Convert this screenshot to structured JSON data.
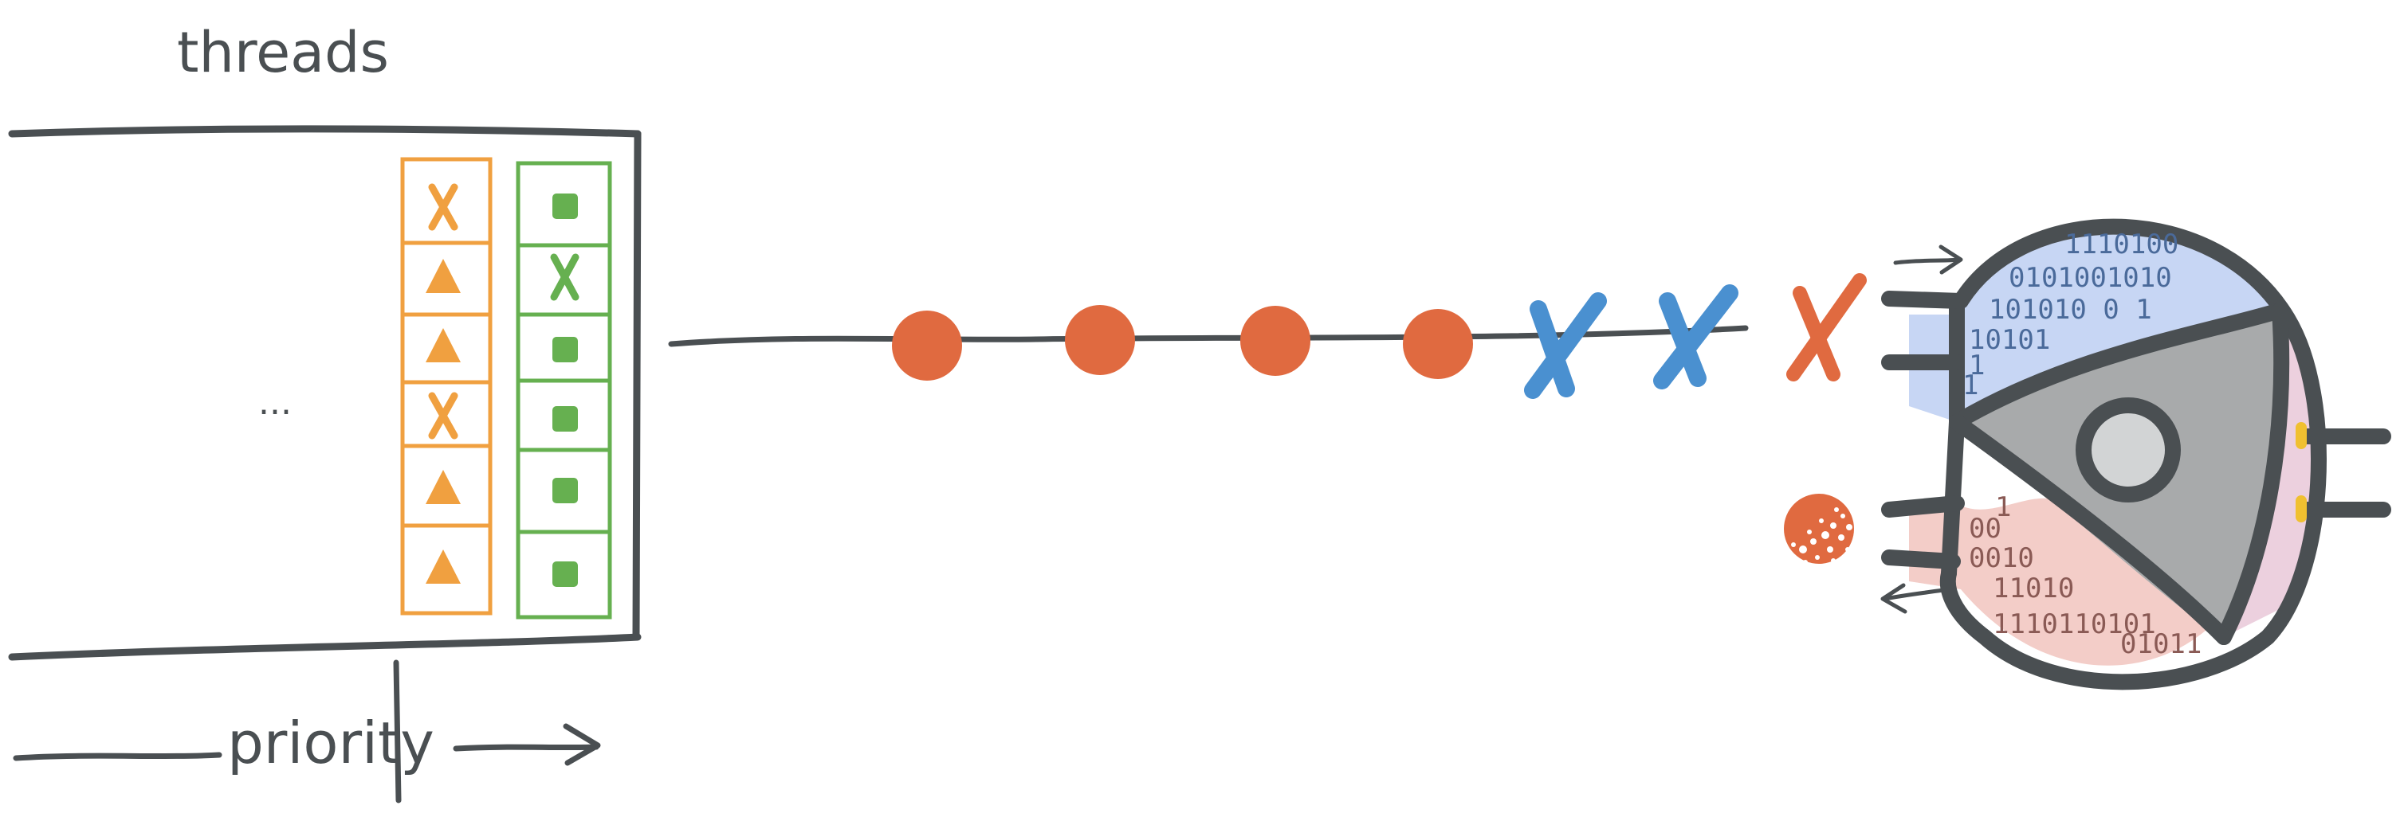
{
  "labels": {
    "threads": "threads",
    "ellipsis": "...",
    "priority": "priority"
  },
  "queues": [
    {
      "name": "orange-queue",
      "color": "#f0a040",
      "items": [
        "x",
        "triangle",
        "triangle",
        "x",
        "triangle",
        "triangle"
      ]
    },
    {
      "name": "green-queue",
      "color": "#66b050",
      "items": [
        "square",
        "x",
        "square",
        "square",
        "square",
        "square"
      ]
    }
  ],
  "pipeline": {
    "dots": 4,
    "blue_marks": 2,
    "red_marks": 1
  },
  "machine": {
    "top_binary": [
      "1110100",
      "0101001010",
      "101010 0 1",
      "10101",
      "1",
      "1"
    ],
    "bottom_binary": [
      "1",
      "00",
      "0010",
      "11010",
      "1110110101",
      "01011"
    ]
  },
  "colors": {
    "ink": "#4a4f52",
    "orange": "#f0a040",
    "green": "#66b050",
    "red_dot": "#e06a40",
    "blue_x": "#4a90d0",
    "top_fill": "#c7d6f4",
    "bottom_fill": "#f3cdc8",
    "right_fill": "#ecd0de",
    "gray_fill": "#a8aaab",
    "hub_fill": "#d2d4d5",
    "yellow_dot": "#f0c030"
  }
}
